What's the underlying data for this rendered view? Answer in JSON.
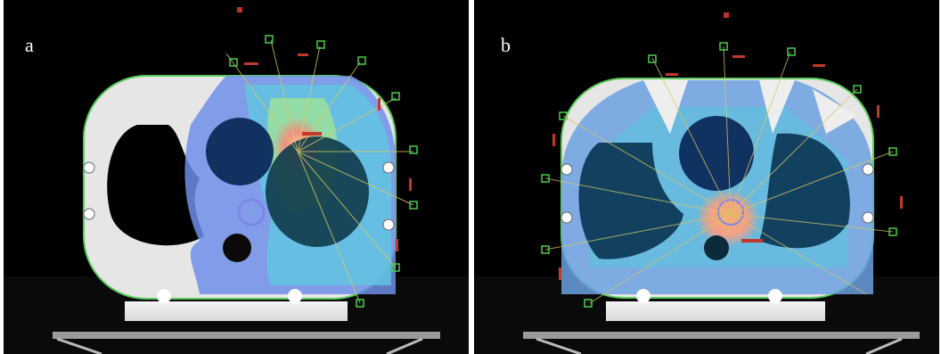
{
  "figure": {
    "panels": [
      {
        "label": "a"
      },
      {
        "label": "b"
      }
    ],
    "colors": {
      "background": "#000000",
      "phantom": "#e8e8e8",
      "dose_low": "#4a58d8",
      "dose_mid": "#52c8e0",
      "dose_high": "#f0a080",
      "beam_lines": "#d8c860",
      "outline": "#4ccc4c"
    }
  }
}
